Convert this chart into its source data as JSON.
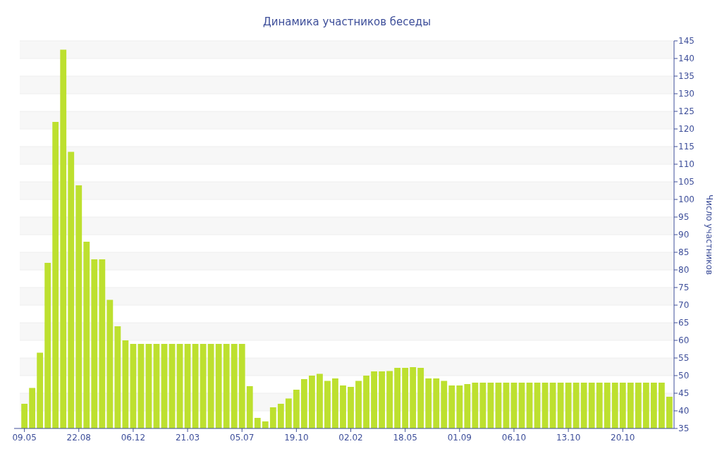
{
  "chart_data": {
    "type": "bar",
    "title": "Динамика участников беседы",
    "y2label": "Число участников",
    "categories": [
      "09.05",
      null,
      null,
      null,
      null,
      null,
      null,
      "22.08",
      null,
      null,
      null,
      null,
      null,
      null,
      "06.12",
      null,
      null,
      null,
      null,
      null,
      null,
      "21.03",
      null,
      null,
      null,
      null,
      null,
      null,
      "05.07",
      null,
      null,
      null,
      null,
      null,
      null,
      "19.10",
      null,
      null,
      null,
      null,
      null,
      null,
      "02.02",
      null,
      null,
      null,
      null,
      null,
      null,
      "18.05",
      null,
      null,
      null,
      null,
      null,
      null,
      "01.09",
      null,
      null,
      null,
      null,
      null,
      null,
      "06.10",
      null,
      null,
      null,
      null,
      null,
      null,
      "13.10",
      null,
      null,
      null,
      null,
      null,
      null,
      "20.10",
      null,
      null,
      null,
      null,
      null,
      null
    ],
    "series": [
      {
        "color": "#bde02f",
        "axis": "y2",
        "values": [
          42,
          46.5,
          56.5,
          82,
          122,
          142.5,
          113.5,
          104,
          88,
          83,
          83,
          71.5,
          64,
          60,
          59,
          59,
          59,
          59,
          59,
          59,
          59,
          59,
          59,
          59,
          59,
          59,
          59,
          59,
          59,
          47,
          38,
          37,
          41,
          42,
          43.5,
          46,
          49,
          50,
          50.5,
          48.5,
          49.2,
          47.2,
          46.8,
          48.5,
          50,
          51.2,
          51.2,
          51.3,
          52.2,
          52.2,
          52.4,
          52.2,
          49.2,
          49.2,
          48.5,
          47.2,
          47.2,
          47.6,
          48,
          48,
          48,
          48,
          48,
          48,
          48,
          48,
          48,
          48,
          48,
          48,
          48,
          48,
          48,
          48,
          48,
          48,
          48,
          48,
          48,
          48,
          48,
          48,
          48,
          44
        ]
      }
    ],
    "y2lim": [
      35,
      145
    ],
    "y2ticks": [
      35,
      40,
      45,
      50,
      55,
      60,
      65,
      70,
      75,
      80,
      85,
      90,
      95,
      100,
      105,
      110,
      115,
      120,
      125,
      130,
      135,
      140,
      145
    ],
    "grid": "y"
  }
}
